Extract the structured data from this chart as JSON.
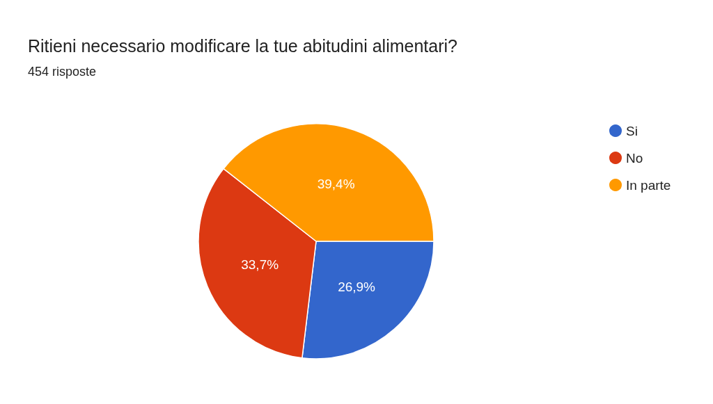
{
  "chart_data": {
    "type": "pie",
    "title": "Ritieni necessario modificare la tue abitudini alimentari?",
    "subtitle": "454 risposte",
    "categories": [
      "Si",
      "No",
      "In parte"
    ],
    "values": [
      26.9,
      33.7,
      39.4
    ],
    "colors": [
      "#3366cc",
      "#dc3912",
      "#ff9900"
    ],
    "value_labels": [
      "26,9%",
      "33,7%",
      "39,4%"
    ],
    "legend": "top right"
  }
}
